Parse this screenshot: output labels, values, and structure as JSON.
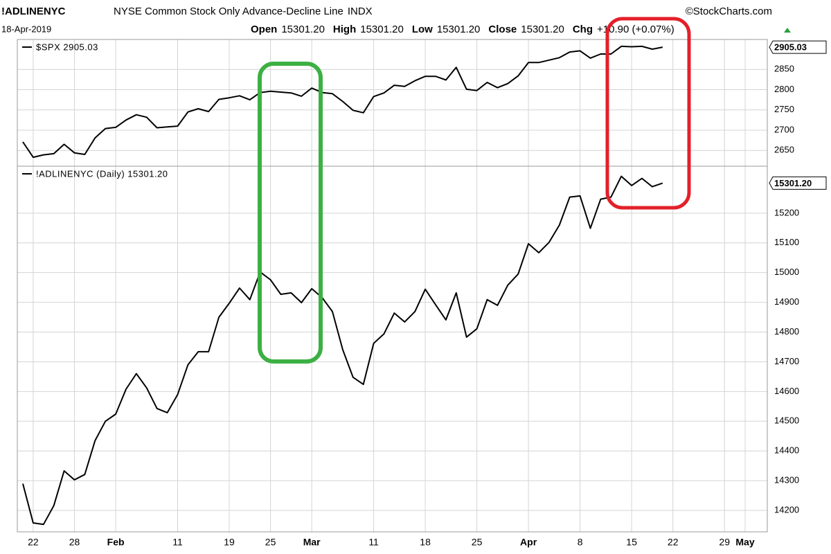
{
  "header": {
    "title": "!ADLINENYC",
    "subtitle": "NYSE Common Stock Only Advance-Decline Line",
    "exchange": "INDX",
    "source": "©StockCharts.com",
    "date": "18-Apr-2019",
    "quote": [
      {
        "label": "Open",
        "value": "15301.20"
      },
      {
        "label": "High",
        "value": "15301.20"
      },
      {
        "label": "Low",
        "value": "15301.20"
      },
      {
        "label": "Close",
        "value": "15301.20"
      },
      {
        "label": "Chg",
        "value": "+10.90 (+0.07%)"
      }
    ]
  },
  "chart_data": [
    {
      "type": "line",
      "series": [
        {
          "name": "$SPX 2905.03",
          "color": "#000000",
          "values": [
            2671,
            2633,
            2639,
            2642,
            2665,
            2644,
            2640,
            2681,
            2704,
            2707,
            2725,
            2738,
            2732,
            2706,
            2708,
            2710,
            2745,
            2753,
            2746,
            2776,
            2780,
            2785,
            2775,
            2793,
            2796,
            2794,
            2792,
            2784,
            2804,
            2793,
            2790,
            2771,
            2749,
            2743,
            2783,
            2792,
            2811,
            2808,
            2822,
            2833,
            2833,
            2824,
            2855,
            2801,
            2798,
            2818,
            2805,
            2815,
            2834,
            2867,
            2867,
            2873,
            2879,
            2893,
            2896,
            2878,
            2888,
            2888,
            2907,
            2906,
            2907,
            2900,
            2905.03,
            null,
            null,
            null,
            null,
            null,
            null,
            null,
            null,
            null,
            null
          ]
        }
      ],
      "ylim": [
        2611,
        2924
      ],
      "yticks": [
        2650,
        2700,
        2750,
        2800,
        2850
      ],
      "end_label": "2905.03",
      "grid": true
    },
    {
      "type": "line",
      "categories": [
        null,
        "22",
        null,
        null,
        null,
        "28",
        null,
        null,
        null,
        "Feb",
        null,
        null,
        null,
        null,
        null,
        "11",
        null,
        null,
        null,
        null,
        "19",
        null,
        null,
        null,
        "25",
        null,
        null,
        null,
        "Mar",
        null,
        null,
        null,
        null,
        null,
        "11",
        null,
        null,
        null,
        null,
        "18",
        null,
        null,
        null,
        null,
        "25",
        null,
        null,
        null,
        null,
        "Apr",
        null,
        null,
        null,
        null,
        "8",
        null,
        null,
        null,
        null,
        "15",
        null,
        null,
        null,
        "22",
        null,
        null,
        null,
        null,
        "29",
        null,
        "May",
        null,
        null
      ],
      "series": [
        {
          "name": "!ADLINENYC (Daily) 15301.20",
          "color": "#000000",
          "values": [
            14290,
            14158,
            14153,
            14216,
            14333,
            14303,
            14321,
            14435,
            14500,
            14524,
            14608,
            14660,
            14612,
            14543,
            14529,
            14590,
            14690,
            14734,
            14734,
            14850,
            14897,
            14948,
            14909,
            15002,
            14976,
            14927,
            14932,
            14899,
            14946,
            14916,
            14869,
            14741,
            14648,
            14624,
            14762,
            14794,
            14864,
            14834,
            14869,
            14944,
            14892,
            14841,
            14932,
            14783,
            14811,
            14909,
            14890,
            14958,
            14995,
            15097,
            15067,
            15102,
            15160,
            15254,
            15258,
            15149,
            15247,
            15254,
            15324,
            15293,
            15317,
            15289,
            15301.2,
            null,
            null,
            null,
            null,
            null,
            null,
            null,
            null,
            null,
            null
          ]
        }
      ],
      "ylim": [
        14128,
        15358
      ],
      "yticks": [
        14200,
        14300,
        14400,
        14500,
        14600,
        14700,
        14800,
        14900,
        15000,
        15100,
        15200
      ],
      "end_label": "15301.20",
      "grid": true
    }
  ]
}
